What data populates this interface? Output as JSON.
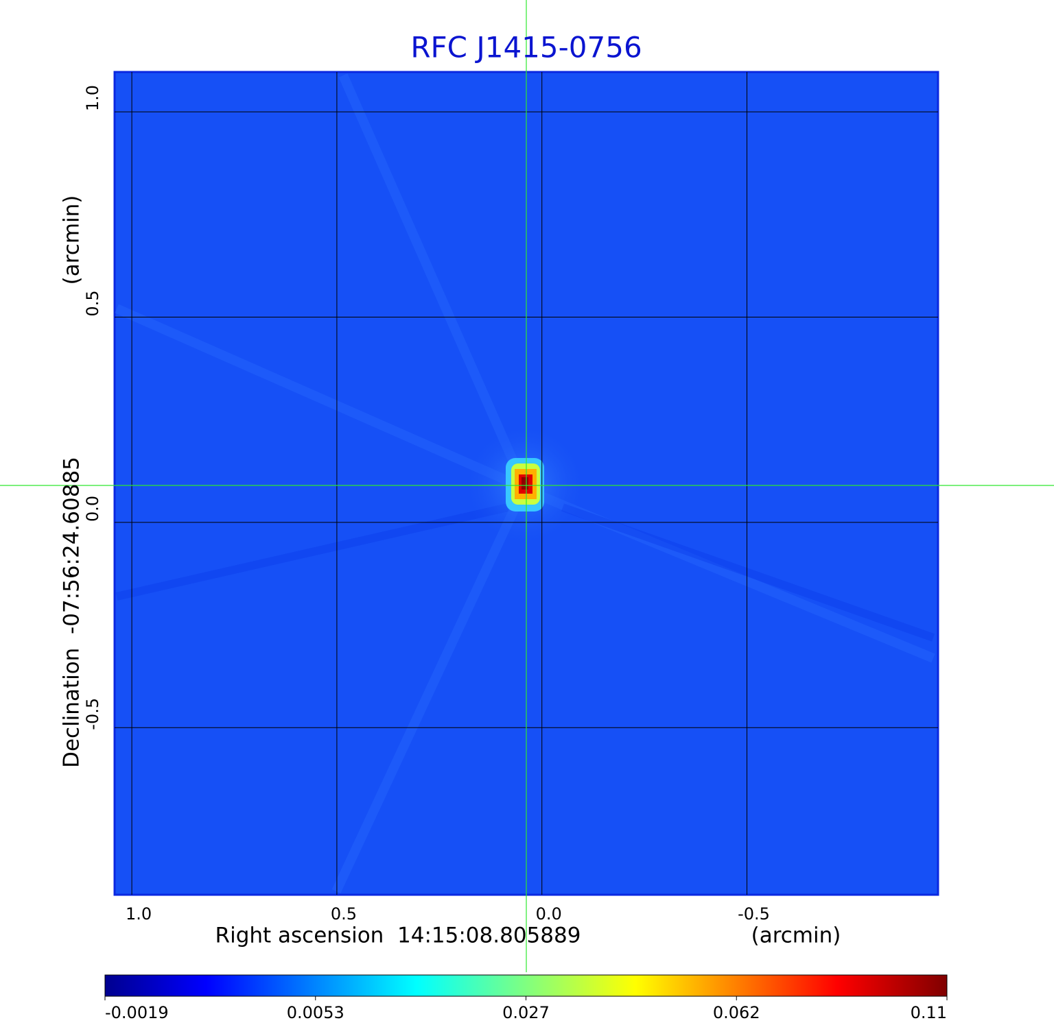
{
  "chart_data": {
    "type": "image",
    "title": "RFC J1415-0756",
    "xlabel": "Right ascension  14:15:08.805889",
    "xunit": "(arcmin)",
    "ylabel": "Declination  -07:56:24.60885",
    "yunit": "(arcmin)",
    "xlim": [
      1.042,
      -0.966
    ],
    "ylim": [
      -0.907,
      1.097
    ],
    "xticks": [
      {
        "value": 1,
        "label": "1.0"
      },
      {
        "value": 0.5,
        "label": "0.5"
      },
      {
        "value": 0,
        "label": "0.0"
      },
      {
        "value": -0.5,
        "label": "-0.5"
      }
    ],
    "yticks": [
      {
        "value": -0.5,
        "label": "-0.5"
      },
      {
        "value": 0,
        "label": "0.0"
      },
      {
        "value": 0.5,
        "label": "0.5"
      },
      {
        "value": 1,
        "label": "1.0"
      }
    ],
    "grid": true,
    "colorbar_ticks": [
      -0.0019,
      0.0053,
      0.027,
      0.062,
      0.11
    ]
  }
}
